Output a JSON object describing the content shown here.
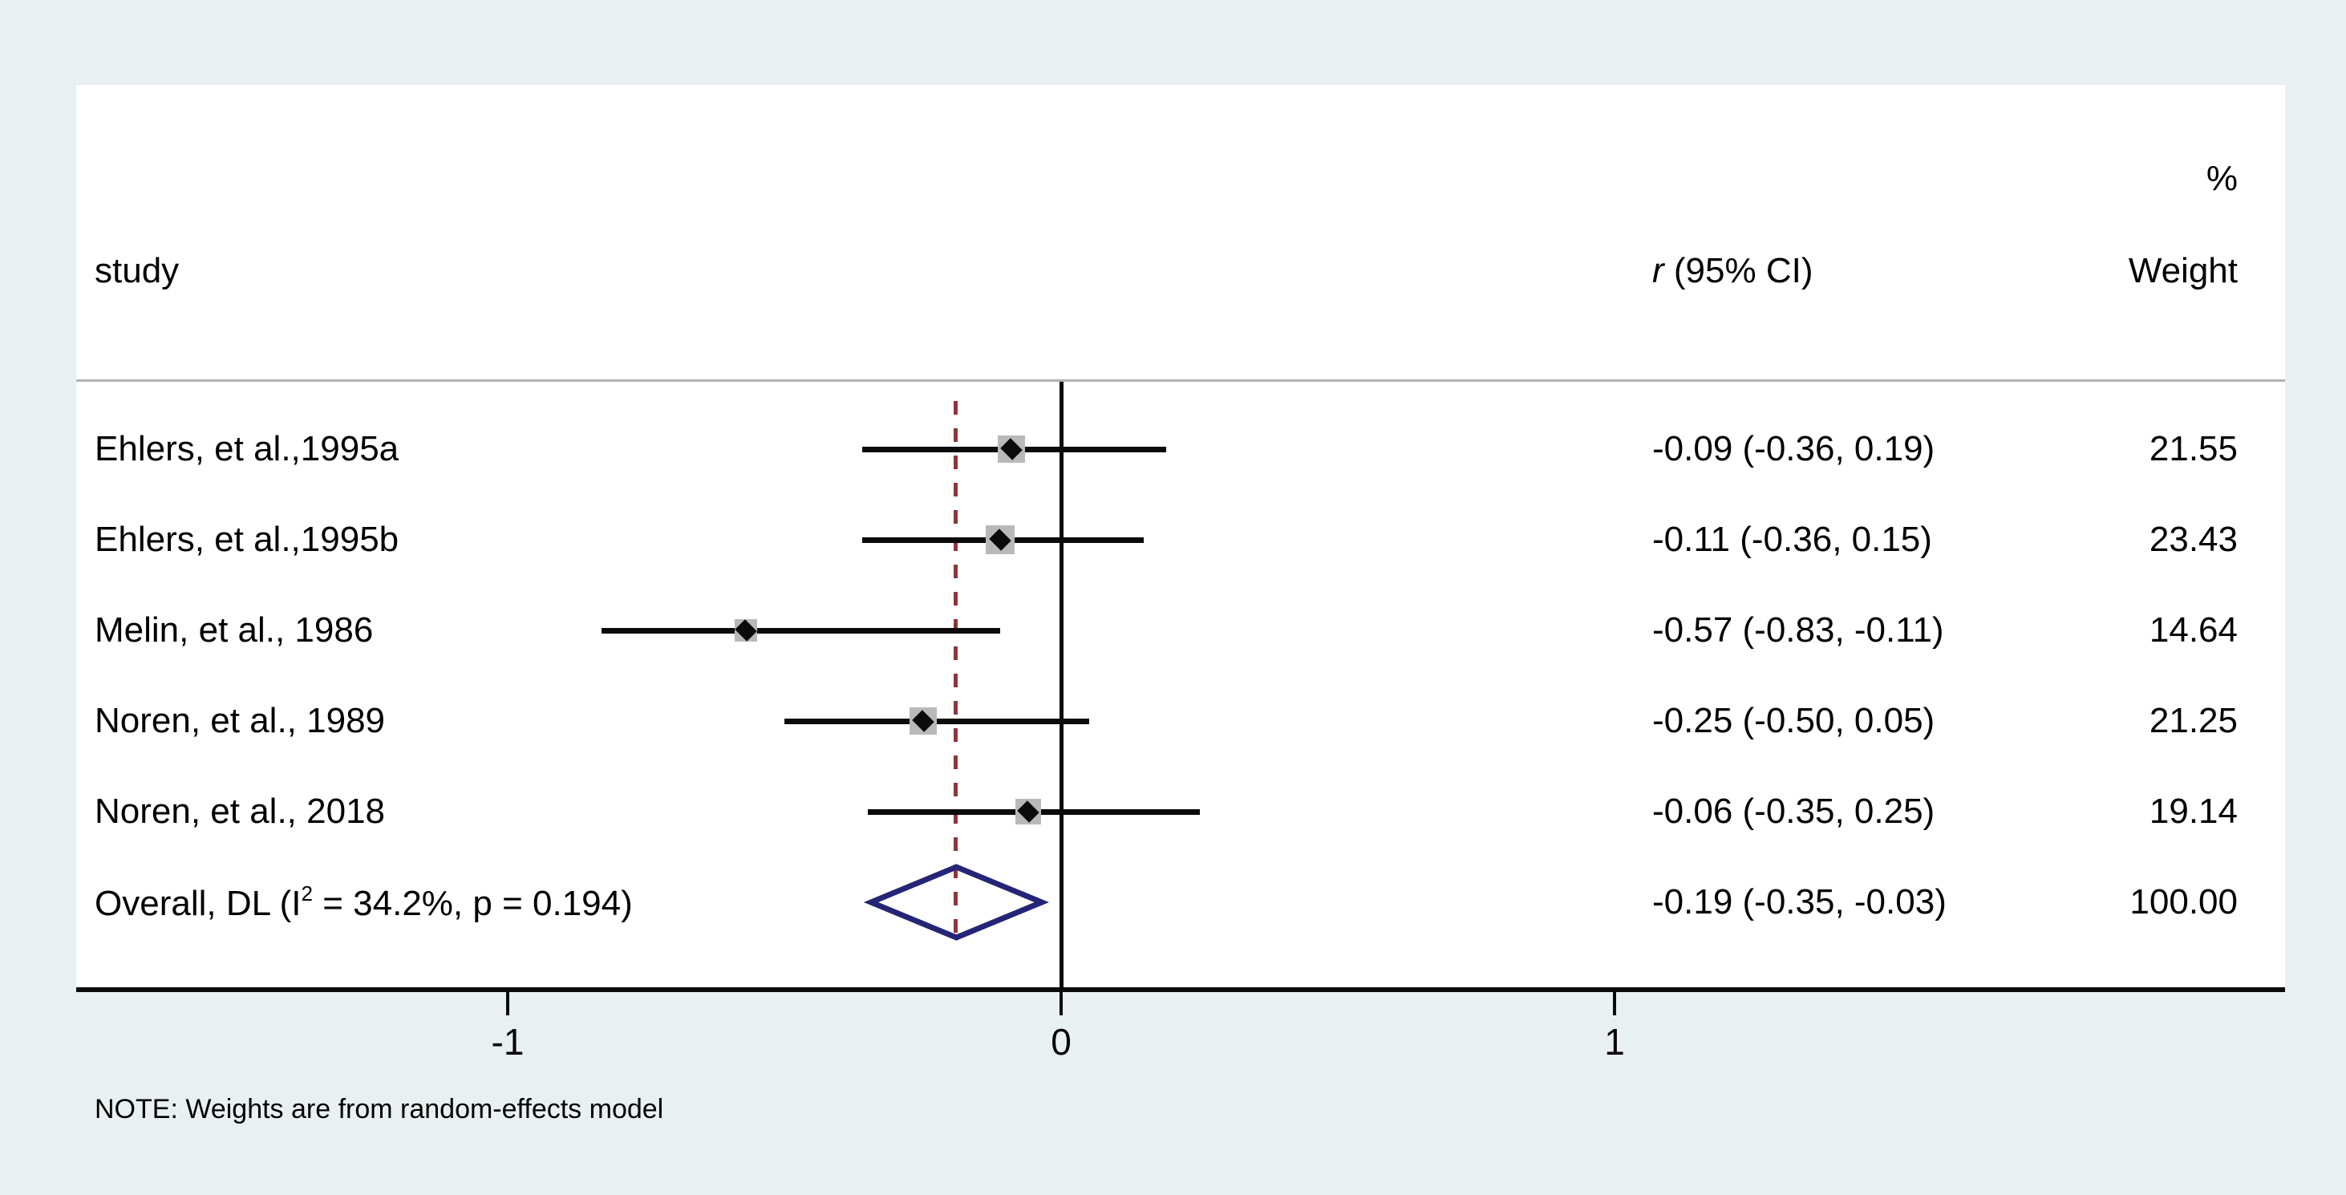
{
  "header": {
    "study_col": "study",
    "effect_col_italic": "r",
    "effect_col_rest": " (95% CI)",
    "percent_sign": "%",
    "weight_col": "Weight"
  },
  "note": "NOTE: Weights are from random-effects model",
  "colors": {
    "background": "#e9f0f2",
    "panel": "#ffffff",
    "ci_line": "#0b0b0b",
    "weight_box": "#b9b9b9",
    "overall_diamond": "#252577",
    "null_line_dashed": "#90353b",
    "separator": "#b3b3b3"
  },
  "chart_data": {
    "type": "forest",
    "effect_measure": "r (95% CI)",
    "x_axis": {
      "ticks": [
        "-1",
        "0",
        "1"
      ],
      "tick_values": [
        -1,
        0,
        1
      ],
      "zero_line": 0,
      "overall_dashed_line": -0.19
    },
    "studies": [
      {
        "label": "Ehlers, et al.,1995a",
        "est": -0.09,
        "lo": -0.36,
        "hi": 0.19,
        "ci_text": "-0.09 (-0.36, 0.19)",
        "weight": 21.55,
        "weight_text": "21.55"
      },
      {
        "label": "Ehlers, et al.,1995b",
        "est": -0.11,
        "lo": -0.36,
        "hi": 0.15,
        "ci_text": "-0.11 (-0.36, 0.15)",
        "weight": 23.43,
        "weight_text": "23.43"
      },
      {
        "label": "Melin, et al., 1986",
        "est": -0.57,
        "lo": -0.83,
        "hi": -0.11,
        "ci_text": "-0.57 (-0.83, -0.11)",
        "weight": 14.64,
        "weight_text": "14.64"
      },
      {
        "label": "Noren, et al., 1989",
        "est": -0.25,
        "lo": -0.5,
        "hi": 0.05,
        "ci_text": "-0.25 (-0.50, 0.05)",
        "weight": 21.25,
        "weight_text": "21.25"
      },
      {
        "label": "Noren, et al., 2018",
        "est": -0.06,
        "lo": -0.35,
        "hi": 0.25,
        "ci_text": "-0.06 (-0.35, 0.25)",
        "weight": 19.14,
        "weight_text": "19.14"
      }
    ],
    "overall": {
      "label_prefix": "Overall, DL (I",
      "label_sup": "2",
      "label_suffix": " = 34.2%, p = 0.194)",
      "est": -0.19,
      "lo": -0.35,
      "hi": -0.03,
      "ci_text": "-0.19 (-0.35, -0.03)",
      "weight_text": "100.00",
      "heterogeneity_i2": "34.2%",
      "heterogeneity_p": "0.194",
      "model": "DL"
    }
  }
}
